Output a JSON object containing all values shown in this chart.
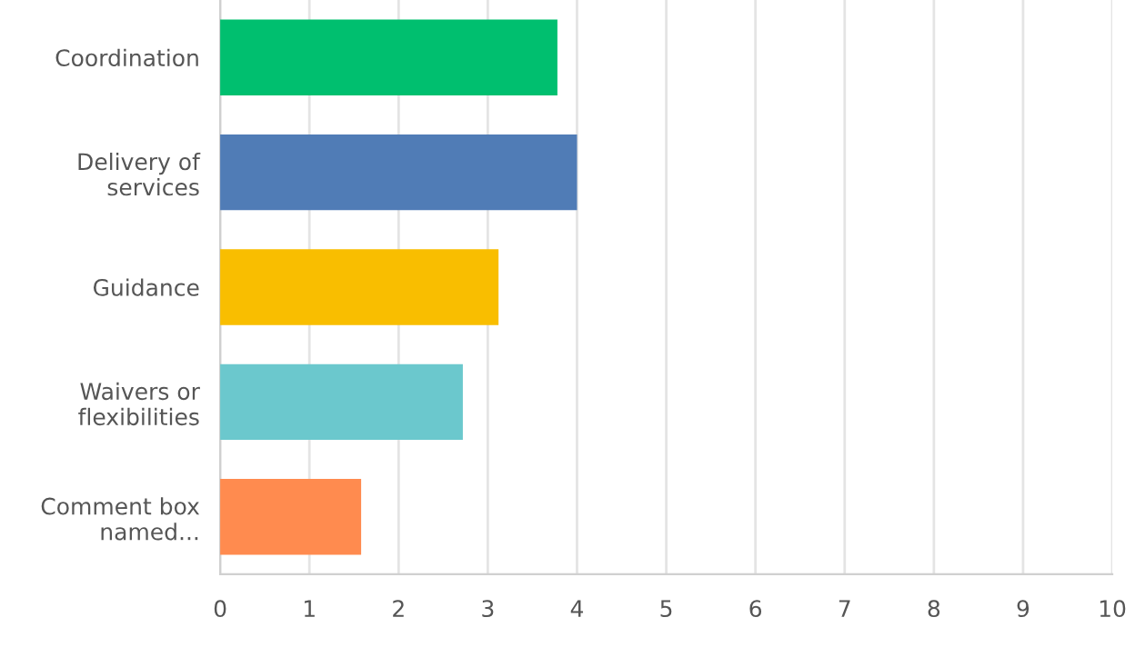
{
  "chart_data": {
    "type": "bar",
    "orientation": "horizontal",
    "categories": [
      "Coordination",
      "Delivery of\nservices",
      "Guidance",
      "Waivers or\nflexibilities",
      "Comment box\nnamed..."
    ],
    "values": [
      3.78,
      4.0,
      3.12,
      2.72,
      1.58
    ],
    "colors": [
      "#00bf6f",
      "#507cb6",
      "#f9be00",
      "#6bc8cd",
      "#ff8b4f"
    ],
    "xlim": [
      0,
      10
    ],
    "xticks": [
      0,
      1,
      2,
      3,
      4,
      5,
      6,
      7,
      8,
      9,
      10
    ],
    "grid": "x",
    "legend": false
  }
}
